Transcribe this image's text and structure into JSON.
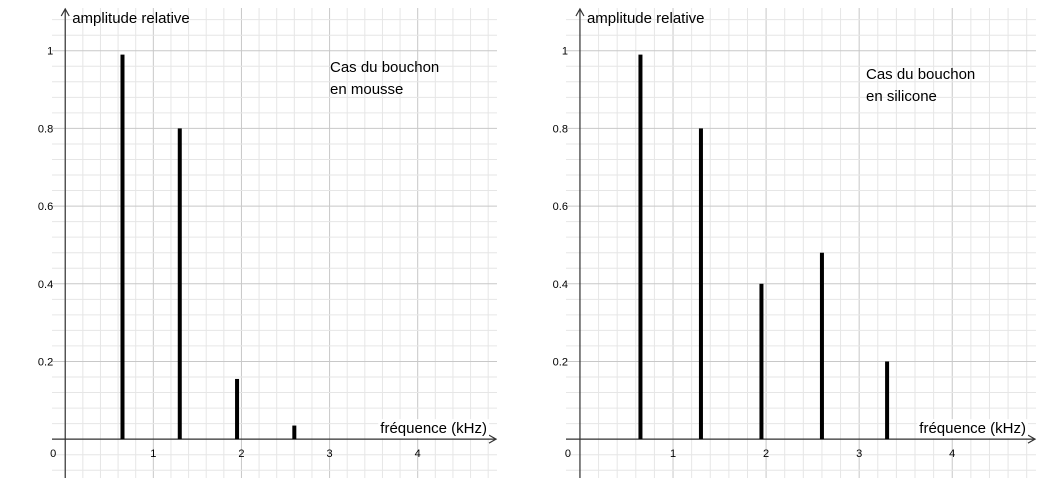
{
  "chart_data": [
    {
      "type": "bar",
      "ylabel": "amplitude relative",
      "xlabel": "fréquence (kHz)",
      "annotation": [
        "Cas du bouchon",
        "en mousse"
      ],
      "x_ticks": [
        "0",
        "1",
        "2",
        "3",
        "4"
      ],
      "y_ticks": [
        "0.2",
        "0.4",
        "0.6",
        "0.8",
        "1"
      ],
      "xlim": [
        -0.15,
        4.9
      ],
      "ylim": [
        -0.1,
        1.11
      ],
      "grid": true,
      "bars": [
        {
          "x": 0.65,
          "y": 0.99
        },
        {
          "x": 1.3,
          "y": 0.8
        },
        {
          "x": 1.95,
          "y": 0.155
        },
        {
          "x": 2.6,
          "y": 0.035
        }
      ]
    },
    {
      "type": "bar",
      "ylabel": "amplitude relative",
      "xlabel": "fréquence (kHz)",
      "annotation": [
        "Cas du bouchon",
        "en silicone"
      ],
      "x_ticks": [
        "0",
        "1",
        "2",
        "3",
        "4"
      ],
      "y_ticks": [
        "0.2",
        "0.4",
        "0.6",
        "0.8",
        "1"
      ],
      "xlim": [
        -0.15,
        4.9
      ],
      "ylim": [
        -0.1,
        1.11
      ],
      "grid": true,
      "bars": [
        {
          "x": 0.65,
          "y": 0.99
        },
        {
          "x": 1.3,
          "y": 0.8
        },
        {
          "x": 1.95,
          "y": 0.4
        },
        {
          "x": 2.6,
          "y": 0.48
        },
        {
          "x": 3.3,
          "y": 0.2
        }
      ]
    }
  ]
}
